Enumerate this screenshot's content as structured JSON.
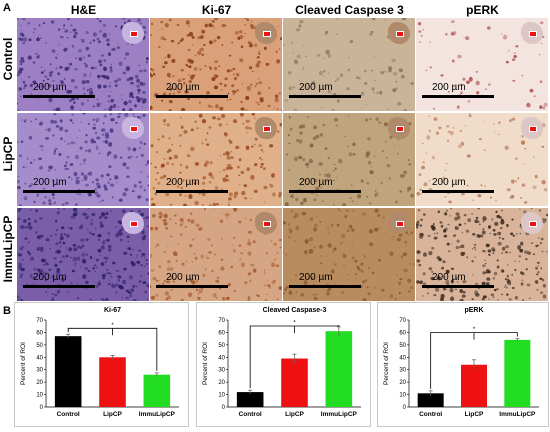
{
  "figure": {
    "panel_a_label": "A",
    "panel_b_label": "B",
    "columns": [
      "H&E",
      "Ki-67",
      "Cleaved Caspase 3",
      "pERK"
    ],
    "rows": [
      "Control",
      "LipCP",
      "ImmuLipCP"
    ],
    "scale_bar_label": "200 µm",
    "stain_colors": {
      "he": "#7b55a8",
      "ki67": "#c06a3a",
      "caspase": "#b8946a",
      "perk": "#e8c8c0"
    }
  },
  "chart_data": [
    {
      "type": "bar",
      "title": "Ki-67",
      "categories": [
        "Control",
        "LipCP",
        "ImmuLipCP"
      ],
      "values": [
        57,
        40,
        26
      ],
      "errors": [
        1.5,
        1.5,
        1.5
      ],
      "colors": [
        "#000000",
        "#ee1111",
        "#22dd22"
      ],
      "ylabel": "Percent of ROI",
      "ylim": [
        0,
        70
      ],
      "yticks": [
        0,
        10,
        20,
        30,
        40,
        50,
        60,
        70
      ],
      "significance": "*"
    },
    {
      "type": "bar",
      "title": "Cleaved Caspase-3",
      "categories": [
        "Control",
        "LipCP",
        "ImmuLipCP"
      ],
      "values": [
        12,
        39,
        61
      ],
      "errors": [
        1.5,
        3.5,
        3.5
      ],
      "colors": [
        "#000000",
        "#ee1111",
        "#22dd22"
      ],
      "ylabel": "Percent of ROI",
      "ylim": [
        0,
        70
      ],
      "yticks": [
        0,
        10,
        20,
        30,
        40,
        50,
        60,
        70
      ],
      "significance": "*"
    },
    {
      "type": "bar",
      "title": "pERK",
      "categories": [
        "Control",
        "LipCP",
        "ImmuLipCP"
      ],
      "values": [
        11,
        34,
        54
      ],
      "errors": [
        2,
        4,
        1
      ],
      "colors": [
        "#000000",
        "#ee1111",
        "#22dd22"
      ],
      "ylabel": "Percent of ROI",
      "ylim": [
        0,
        70
      ],
      "yticks": [
        0,
        10,
        20,
        30,
        40,
        50,
        60,
        70
      ],
      "significance": "*"
    }
  ]
}
